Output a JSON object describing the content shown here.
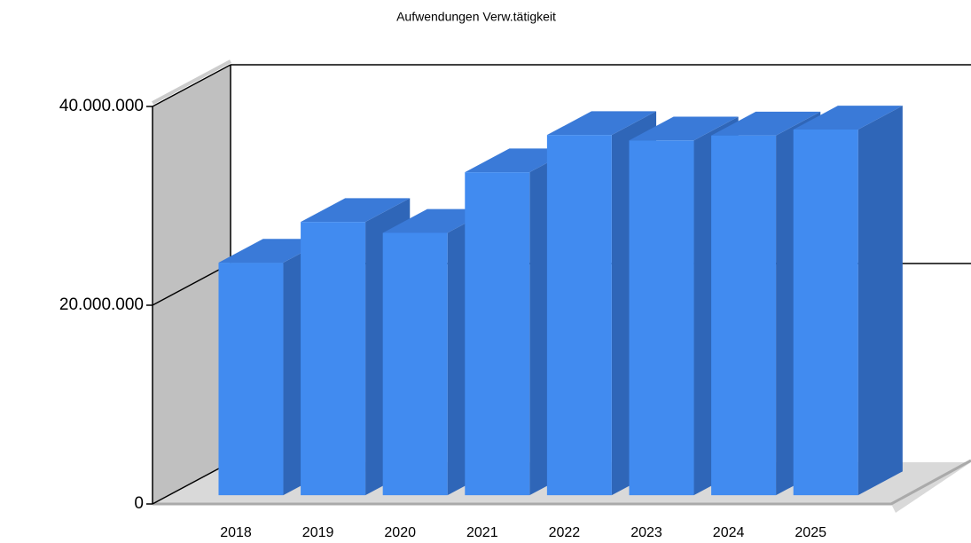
{
  "chart_data": {
    "type": "bar3d",
    "title": "Aufwendungen Verw.tätigkeit",
    "categories": [
      "2018",
      "2019",
      "2020",
      "2021",
      "2022",
      "2023",
      "2024",
      "2025"
    ],
    "values": [
      23400000,
      27500000,
      26400000,
      32500000,
      36250000,
      35700000,
      36200000,
      36800000
    ],
    "color": "#418bf0",
    "ylim": [
      0,
      40000000
    ],
    "yticks": [
      {
        "value": 0,
        "label": "0"
      },
      {
        "value": 20000000,
        "label": "20.000.000"
      },
      {
        "value": 40000000,
        "label": "40.000.000"
      }
    ],
    "grid": true
  }
}
